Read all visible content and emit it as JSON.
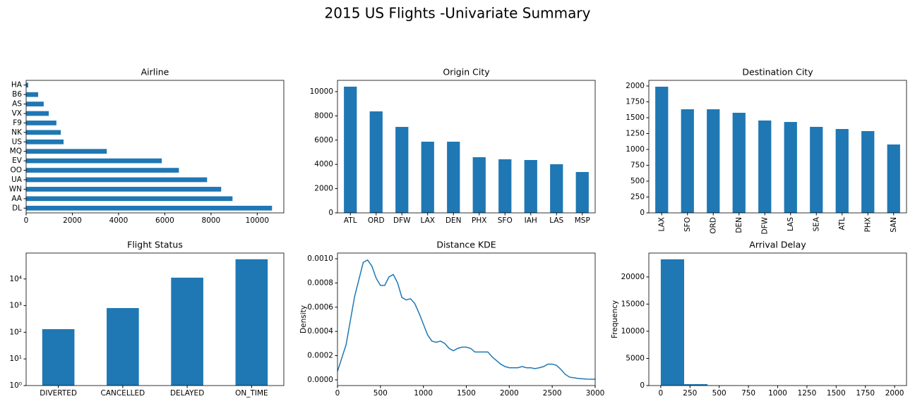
{
  "title": "2015 US Flights -Univariate Summary",
  "chart_data": [
    {
      "type": "barh",
      "title": "Airline",
      "color": "#1f77b4",
      "categories": [
        "DL",
        "AA",
        "WN",
        "UA",
        "OO",
        "EV",
        "MQ",
        "US",
        "NK",
        "F9",
        "VX",
        "AS",
        "B6",
        "HA"
      ],
      "values": [
        10640,
        8930,
        8440,
        7830,
        6610,
        5870,
        3490,
        1620,
        1500,
        1310,
        980,
        760,
        520,
        90
      ],
      "xlim": [
        0,
        11150
      ],
      "xticks": [
        0,
        2000,
        4000,
        6000,
        8000,
        10000
      ]
    },
    {
      "type": "bar",
      "title": "Origin City",
      "color": "#1f77b4",
      "categories": [
        "ATL",
        "ORD",
        "DFW",
        "LAX",
        "DEN",
        "PHX",
        "SFO",
        "IAH",
        "LAS",
        "MSP"
      ],
      "values": [
        10410,
        8370,
        7090,
        5870,
        5870,
        4590,
        4420,
        4360,
        4010,
        3370
      ],
      "ylim": [
        0,
        10930
      ],
      "yticks": [
        0,
        2000,
        4000,
        6000,
        8000,
        10000
      ]
    },
    {
      "type": "bar",
      "title": "Destination City",
      "color": "#1f77b4",
      "xtick_rotation": 90,
      "categories": [
        "LAX",
        "SFO",
        "ORD",
        "DEN",
        "DFW",
        "LAS",
        "SEA",
        "ATL",
        "PHX",
        "SAN"
      ],
      "values": [
        1989,
        1633,
        1633,
        1578,
        1456,
        1433,
        1356,
        1322,
        1289,
        1078
      ],
      "ylim": [
        0,
        2089
      ],
      "yticks": [
        0,
        250,
        500,
        750,
        1000,
        1250,
        1500,
        1750,
        2000
      ]
    },
    {
      "type": "bar",
      "title": "Flight Status",
      "color": "#1f77b4",
      "log_scale": true,
      "categories": [
        "DIVERTED",
        "CANCELLED",
        "DELAYED",
        "ON_TIME"
      ],
      "values": [
        131,
        810,
        11200,
        55000
      ],
      "ylim": [
        1,
        94000
      ],
      "yticks": [
        {
          "value": 1,
          "label": "10⁰"
        },
        {
          "value": 10,
          "label": "10¹"
        },
        {
          "value": 100,
          "label": "10²"
        },
        {
          "value": 1000,
          "label": "10³"
        },
        {
          "value": 10000,
          "label": "10⁴"
        }
      ]
    },
    {
      "type": "line",
      "title": "Distance KDE",
      "color": "#1f77b4",
      "ylabel": "Density",
      "x": [
        0,
        100,
        200,
        300,
        350,
        400,
        450,
        500,
        550,
        600,
        650,
        700,
        750,
        800,
        850,
        900,
        950,
        1000,
        1050,
        1100,
        1150,
        1200,
        1250,
        1300,
        1350,
        1400,
        1450,
        1500,
        1550,
        1600,
        1650,
        1700,
        1750,
        1800,
        1850,
        1900,
        1950,
        2000,
        2050,
        2100,
        2150,
        2200,
        2250,
        2300,
        2350,
        2400,
        2450,
        2500,
        2550,
        2600,
        2650,
        2700,
        2800,
        2900,
        3000
      ],
      "values": [
        7e-05,
        0.00029,
        0.00069,
        0.00097,
        0.00099,
        0.00094,
        0.00084,
        0.00078,
        0.00078,
        0.00085,
        0.00087,
        0.0008,
        0.00068,
        0.00066,
        0.00067,
        0.00063,
        0.00055,
        0.00046,
        0.00037,
        0.00032,
        0.00031,
        0.00032,
        0.0003,
        0.00026,
        0.00024,
        0.00026,
        0.00027,
        0.00027,
        0.00026,
        0.00023,
        0.00023,
        0.00023,
        0.00023,
        0.00019,
        0.00016,
        0.00013,
        0.00011,
        0.0001,
        0.0001,
        0.0001,
        0.00011,
        0.0001,
        0.0001,
        9.3e-05,
        0.0001,
        0.00011,
        0.00013,
        0.00013,
        0.00012,
        8.7e-05,
        4.7e-05,
        2.3e-05,
        1.2e-05,
        6e-06,
        5e-06
      ],
      "xlim": [
        0,
        3000
      ],
      "xticks": [
        0,
        500,
        1000,
        1500,
        2000,
        2500,
        3000
      ],
      "ylim": [
        -4.7e-05,
        0.001047
      ],
      "yticks": [
        {
          "value": 0,
          "label": "0.0000"
        },
        {
          "value": 0.0002,
          "label": "0.0002"
        },
        {
          "value": 0.0004,
          "label": "0.0004"
        },
        {
          "value": 0.0006,
          "label": "0.0006"
        },
        {
          "value": 0.0008,
          "label": "0.0008"
        },
        {
          "value": 0.001,
          "label": "0.0010"
        }
      ]
    },
    {
      "type": "histogram",
      "title": "Arrival Delay",
      "color": "#1f77b4",
      "ylabel": "Frequency",
      "bins": [
        0,
        200,
        400,
        600,
        800,
        1000,
        1200,
        1400,
        1600,
        1800,
        2000
      ],
      "values": [
        23250,
        260,
        30,
        10,
        5,
        3,
        2,
        1,
        1,
        1
      ],
      "xlim": [
        -102,
        2102
      ],
      "xticks": [
        0,
        250,
        500,
        750,
        1000,
        1250,
        1500,
        1750,
        2000
      ],
      "ylim": [
        0,
        24400
      ],
      "yticks": [
        0,
        5000,
        10000,
        15000,
        20000
      ]
    }
  ]
}
